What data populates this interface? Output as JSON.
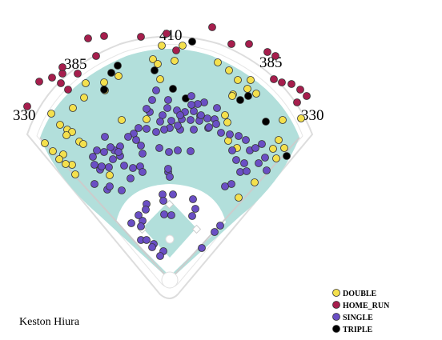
{
  "chart_data": {
    "type": "scatter",
    "title": "",
    "player_name": "Keston Hiura",
    "distance_labels": [
      "330",
      "385",
      "410",
      "385",
      "330"
    ],
    "legend": [
      {
        "key": "double",
        "label": "DOUBLE",
        "color": "#f4e04d"
      },
      {
        "key": "home_run",
        "label": "HOME_RUN",
        "color": "#a61e4d"
      },
      {
        "key": "single",
        "label": "SINGLE",
        "color": "#6a4fc4"
      },
      {
        "key": "triple",
        "label": "TRIPLE",
        "color": "#000000"
      }
    ],
    "field_colors": {
      "outfield": "#b2dfdb",
      "infield_dirt": "#ffffff",
      "wall": "#e0e0e0"
    },
    "series": [
      {
        "name": "HOME_RUN",
        "color": "#a61e4d",
        "points": [
          [
            110,
            48
          ],
          [
            130,
            45
          ],
          [
            176,
            46
          ],
          [
            265,
            34
          ],
          [
            289,
            55
          ],
          [
            311,
            55
          ],
          [
            334,
            65
          ],
          [
            344,
            70
          ],
          [
            342,
            99
          ],
          [
            352,
            103
          ],
          [
            364,
            105
          ],
          [
            375,
            112
          ],
          [
            383,
            120
          ],
          [
            371,
            128
          ],
          [
            34,
            133
          ],
          [
            49,
            102
          ],
          [
            65,
            97
          ],
          [
            78,
            92
          ],
          [
            97,
            92
          ],
          [
            78,
            84
          ],
          [
            76,
            104
          ],
          [
            85,
            112
          ],
          [
            120,
            70
          ],
          [
            208,
            42
          ],
          [
            220,
            63
          ]
        ]
      },
      {
        "name": "DOUBLE",
        "color": "#f4e04d",
        "points": [
          [
            202,
            57
          ],
          [
            228,
            57
          ],
          [
            191,
            74
          ],
          [
            218,
            76
          ],
          [
            200,
            99
          ],
          [
            130,
            103
          ],
          [
            107,
            104
          ],
          [
            131,
            113
          ],
          [
            105,
            122
          ],
          [
            91,
            135
          ],
          [
            64,
            142
          ],
          [
            75,
            156
          ],
          [
            84,
            162
          ],
          [
            90,
            165
          ],
          [
            99,
            177
          ],
          [
            104,
            180
          ],
          [
            83,
            169
          ],
          [
            56,
            179
          ],
          [
            66,
            189
          ],
          [
            79,
            193
          ],
          [
            74,
            199
          ],
          [
            90,
            206
          ],
          [
            82,
            205
          ],
          [
            94,
            218
          ],
          [
            272,
            78
          ],
          [
            286,
            88
          ],
          [
            297,
            100
          ],
          [
            313,
            100
          ],
          [
            320,
            117
          ],
          [
            309,
            111
          ],
          [
            291,
            118
          ],
          [
            290,
            120
          ],
          [
            281,
            144
          ],
          [
            284,
            153
          ],
          [
            285,
            176
          ],
          [
            296,
            185
          ],
          [
            353,
            150
          ],
          [
            376,
            148
          ],
          [
            341,
            186
          ],
          [
            345,
            198
          ],
          [
            348,
            175
          ],
          [
            355,
            185
          ],
          [
            318,
            228
          ],
          [
            298,
            247
          ],
          [
            152,
            150
          ],
          [
            137,
            219
          ],
          [
            183,
            149
          ],
          [
            148,
            95
          ],
          [
            197,
            80
          ]
        ]
      },
      {
        "name": "TRIPLE",
        "color": "#000000",
        "points": [
          [
            240,
            52
          ],
          [
            147,
            82
          ],
          [
            139,
            91
          ],
          [
            130,
            112
          ],
          [
            216,
            111
          ],
          [
            232,
            123
          ],
          [
            300,
            125
          ],
          [
            310,
            120
          ],
          [
            332,
            152
          ],
          [
            358,
            195
          ],
          [
            193,
            88
          ]
        ]
      },
      {
        "name": "SINGLE",
        "color": "#6a4fc4",
        "points": [
          [
            195,
            113
          ],
          [
            190,
            125
          ],
          [
            210,
            125
          ],
          [
            221,
            138
          ],
          [
            187,
            140
          ],
          [
            183,
            136
          ],
          [
            209,
            135
          ],
          [
            203,
            144
          ],
          [
            231,
            140
          ],
          [
            242,
            139
          ],
          [
            250,
            145
          ],
          [
            259,
            148
          ],
          [
            271,
            135
          ],
          [
            255,
            128
          ],
          [
            247,
            130
          ],
          [
            239,
            131
          ],
          [
            173,
            160
          ],
          [
            183,
            161
          ],
          [
            195,
            165
          ],
          [
            212,
            160
          ],
          [
            225,
            162
          ],
          [
            242,
            162
          ],
          [
            260,
            160
          ],
          [
            276,
            166
          ],
          [
            287,
            168
          ],
          [
            298,
            170
          ],
          [
            307,
            175
          ],
          [
            312,
            188
          ],
          [
            222,
            157
          ],
          [
            214,
            151
          ],
          [
            227,
            149
          ],
          [
            249,
            151
          ],
          [
            238,
            150
          ],
          [
            261,
            159
          ],
          [
            200,
            152
          ],
          [
            205,
            162
          ],
          [
            167,
            167
          ],
          [
            170,
            175
          ],
          [
            176,
            182
          ],
          [
            199,
            185
          ],
          [
            211,
            190
          ],
          [
            222,
            188
          ],
          [
            238,
            189
          ],
          [
            150,
            183
          ],
          [
            143,
            188
          ],
          [
            150,
            195
          ],
          [
            148,
            190
          ],
          [
            138,
            184
          ],
          [
            130,
            190
          ],
          [
            121,
            188
          ],
          [
            116,
            196
          ],
          [
            118,
            206
          ],
          [
            125,
            212
          ],
          [
            127,
            208
          ],
          [
            136,
            209
          ],
          [
            141,
            199
          ],
          [
            155,
            207
          ],
          [
            166,
            210
          ],
          [
            175,
            208
          ],
          [
            178,
            215
          ],
          [
            163,
            223
          ],
          [
            152,
            238
          ],
          [
            134,
            237
          ],
          [
            118,
            230
          ],
          [
            290,
            188
          ],
          [
            295,
            200
          ],
          [
            305,
            204
          ],
          [
            300,
            215
          ],
          [
            308,
            214
          ],
          [
            323,
            204
          ],
          [
            331,
            197
          ],
          [
            333,
            213
          ],
          [
            319,
            185
          ],
          [
            327,
            180
          ],
          [
            210,
            215
          ],
          [
            210,
            211
          ],
          [
            212,
            221
          ],
          [
            289,
            230
          ],
          [
            281,
            233
          ],
          [
            137,
            233
          ],
          [
            178,
            276
          ],
          [
            203,
            243
          ],
          [
            204,
            251
          ],
          [
            183,
            255
          ],
          [
            216,
            243
          ],
          [
            182,
            262
          ],
          [
            173,
            269
          ],
          [
            164,
            279
          ],
          [
            176,
            283
          ],
          [
            214,
            269
          ],
          [
            205,
            268
          ],
          [
            241,
            249
          ],
          [
            244,
            261
          ],
          [
            240,
            270
          ],
          [
            268,
            290
          ],
          [
            275,
            282
          ],
          [
            176,
            300
          ],
          [
            183,
            300
          ],
          [
            192,
            305
          ],
          [
            190,
            309
          ],
          [
            204,
            314
          ],
          [
            200,
            320
          ],
          [
            252,
            310
          ],
          [
            131,
            171
          ],
          [
            160,
            171
          ],
          [
            239,
            120
          ],
          [
            251,
            144
          ],
          [
            225,
            144
          ],
          [
            268,
            149
          ],
          [
            270,
            155
          ],
          [
            178,
            192
          ]
        ]
      }
    ]
  }
}
